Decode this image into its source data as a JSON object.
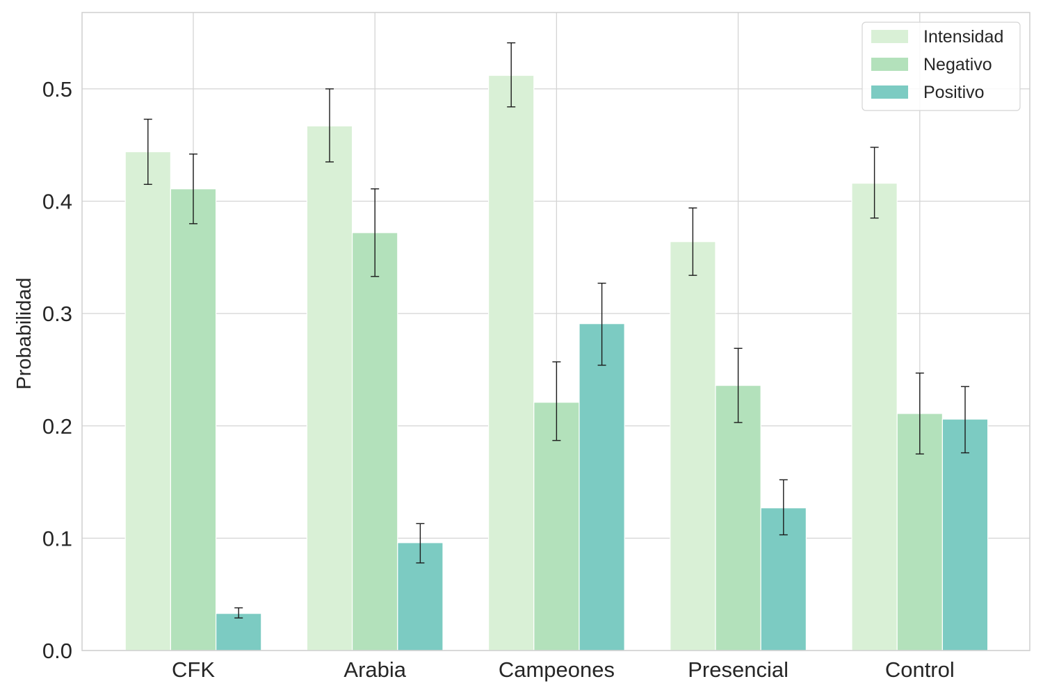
{
  "chart_data": {
    "type": "bar",
    "title": "",
    "xlabel": "",
    "ylabel": "Probabilidad",
    "ylim": [
      0.0,
      0.568
    ],
    "yticks": [
      "0.0",
      "0.1",
      "0.2",
      "0.3",
      "0.4",
      "0.5"
    ],
    "categories": [
      "CFK",
      "Arabia",
      "Campeones",
      "Presencial",
      "Control"
    ],
    "grid": true,
    "legend_position": "top-right",
    "series": [
      {
        "name": "Intensidad",
        "color": "#d9f0d6",
        "values": [
          0.444,
          0.467,
          0.512,
          0.364,
          0.416
        ],
        "err_low": [
          0.415,
          0.435,
          0.484,
          0.334,
          0.385
        ],
        "err_high": [
          0.473,
          0.5,
          0.541,
          0.394,
          0.448
        ]
      },
      {
        "name": "Negativo",
        "color": "#b3e1bb",
        "values": [
          0.411,
          0.372,
          0.221,
          0.236,
          0.211
        ],
        "err_low": [
          0.38,
          0.333,
          0.187,
          0.203,
          0.175
        ],
        "err_high": [
          0.442,
          0.411,
          0.257,
          0.269,
          0.247
        ]
      },
      {
        "name": "Positivo",
        "color": "#7ccbc2",
        "values": [
          0.033,
          0.096,
          0.291,
          0.127,
          0.206
        ],
        "err_low": [
          0.029,
          0.078,
          0.254,
          0.103,
          0.176
        ],
        "err_high": [
          0.038,
          0.113,
          0.327,
          0.152,
          0.235
        ]
      }
    ]
  }
}
